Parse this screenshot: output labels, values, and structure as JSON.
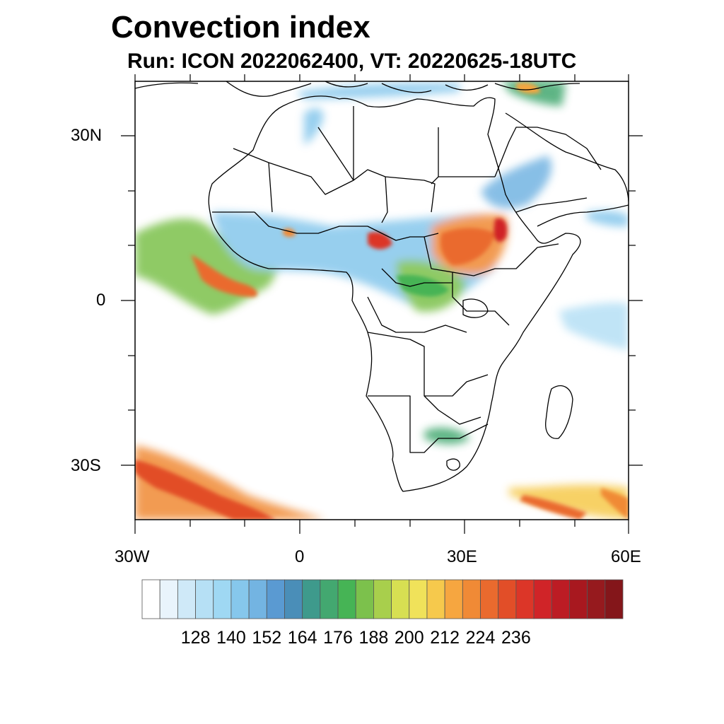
{
  "title": "Convection index",
  "subtitle": "Run: ICON 2022062400,  VT: 20220625-18UTC",
  "axes": {
    "lat_labels": [
      "30N",
      "0",
      "30S"
    ],
    "lon_labels": [
      "30W",
      "0",
      "30E",
      "60E"
    ]
  },
  "colorbar": {
    "tick_labels": [
      "128",
      "140",
      "152",
      "164",
      "176",
      "188",
      "200",
      "212",
      "224",
      "236"
    ],
    "colors": [
      "#ffffff",
      "#e9f4fc",
      "#cfe9f8",
      "#b6e0f5",
      "#9fd8f3",
      "#86c7ec",
      "#73b4e2",
      "#5a9ad2",
      "#4a8eb8",
      "#3e9a8c",
      "#43a870",
      "#46b455",
      "#7cc14c",
      "#a8cf4c",
      "#d7df52",
      "#f0e25a",
      "#f6c94c",
      "#f6a640",
      "#f08a36",
      "#ea6a2e",
      "#e24e28",
      "#dc3628",
      "#d02428",
      "#bc1c24",
      "#a8181f",
      "#961a1e",
      "#84161a"
    ]
  }
}
